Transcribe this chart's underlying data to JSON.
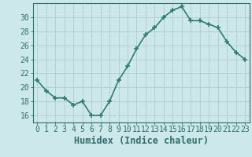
{
  "x": [
    0,
    1,
    2,
    3,
    4,
    5,
    6,
    7,
    8,
    9,
    10,
    11,
    12,
    13,
    14,
    15,
    16,
    17,
    18,
    19,
    20,
    21,
    22,
    23
  ],
  "y": [
    21,
    19.5,
    18.5,
    18.5,
    17.5,
    18,
    16,
    16,
    18,
    21,
    23,
    25.5,
    27.5,
    28.5,
    30,
    31,
    31.5,
    29.5,
    29.5,
    29,
    28.5,
    26.5,
    25,
    24
  ],
  "line_color": "#2e7d6e",
  "marker": "+",
  "marker_size": 4,
  "bg_color": "#cce8e8",
  "grid_color": "#b0cccc",
  "xlabel": "Humidex (Indice chaleur)",
  "ylim": [
    15,
    32
  ],
  "xlim": [
    -0.5,
    23.5
  ],
  "yticks": [
    16,
    18,
    20,
    22,
    24,
    26,
    28,
    30
  ],
  "xticks": [
    0,
    1,
    2,
    3,
    4,
    5,
    6,
    7,
    8,
    9,
    10,
    11,
    12,
    13,
    14,
    15,
    16,
    17,
    18,
    19,
    20,
    21,
    22,
    23
  ],
  "xtick_labels": [
    "0",
    "1",
    "2",
    "3",
    "4",
    "5",
    "6",
    "7",
    "8",
    "9",
    "10",
    "11",
    "12",
    "13",
    "14",
    "15",
    "16",
    "17",
    "18",
    "19",
    "20",
    "21",
    "22",
    "23"
  ],
  "axis_color": "#2e6e6e",
  "tick_fontsize": 7,
  "xlabel_fontsize": 8.5,
  "line_width": 1.2
}
